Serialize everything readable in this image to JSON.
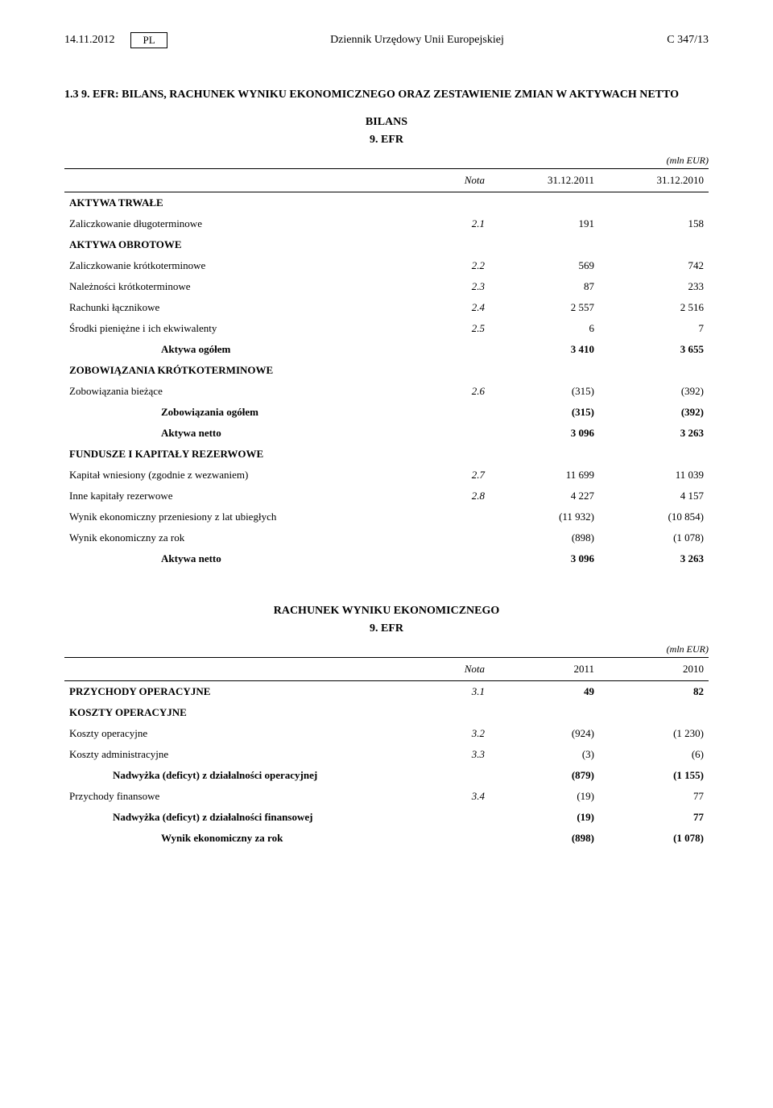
{
  "header": {
    "date": "14.11.2012",
    "language": "PL",
    "journal": "Dziennik Urzędowy Unii Europejskiej",
    "page": "C 347/13"
  },
  "section": {
    "number": "1.3 9.",
    "title": "EFR: BILANS, RACHUNEK WYNIKU EKONOMICZNEGO ORAZ ZESTAWIENIE ZMIAN W AKTYWACH NETTO"
  },
  "balance": {
    "title": "BILANS",
    "subtitle": "9. EFR",
    "unit": "(mln EUR)",
    "columns": {
      "nota": "Nota",
      "c1": "31.12.2011",
      "c2": "31.12.2010"
    },
    "rows": [
      {
        "type": "heading",
        "label": "AKTYWA TRWAŁE"
      },
      {
        "type": "data",
        "label": "Zaliczkowanie długoterminowe",
        "nota": "2.1",
        "v1": "191",
        "v2": "158"
      },
      {
        "type": "heading",
        "label": "AKTYWA OBROTOWE"
      },
      {
        "type": "data",
        "label": "Zaliczkowanie krótkoterminowe",
        "nota": "2.2",
        "v1": "569",
        "v2": "742"
      },
      {
        "type": "data",
        "label": "Należności krótkoterminowe",
        "nota": "2.3",
        "v1": "87",
        "v2": "233"
      },
      {
        "type": "data",
        "label": "Rachunki łącznikowe",
        "nota": "2.4",
        "v1": "2 557",
        "v2": "2 516"
      },
      {
        "type": "data",
        "label": "Środki pieniężne i ich ekwiwalenty",
        "nota": "2.5",
        "v1": "6",
        "v2": "7"
      },
      {
        "type": "indent-bold",
        "label": "Aktywa ogółem",
        "v1": "3 410",
        "v2": "3 655"
      },
      {
        "type": "heading",
        "label": "ZOBOWIĄZANIA KRÓTKOTERMINOWE"
      },
      {
        "type": "data",
        "label": "Zobowiązania bieżące",
        "nota": "2.6",
        "v1": "(315)",
        "v2": "(392)"
      },
      {
        "type": "indent-bold",
        "label": "Zobowiązania ogółem",
        "v1": "(315)",
        "v2": "(392)"
      },
      {
        "type": "indent-bold",
        "label": "Aktywa netto",
        "v1": "3 096",
        "v2": "3 263"
      },
      {
        "type": "heading",
        "label": "FUNDUSZE I KAPITAŁY REZERWOWE"
      },
      {
        "type": "data",
        "label": "Kapitał wniesiony (zgodnie z wezwaniem)",
        "nota": "2.7",
        "v1": "11 699",
        "v2": "11 039"
      },
      {
        "type": "data",
        "label": "Inne kapitały rezerwowe",
        "nota": "2.8",
        "v1": "4 227",
        "v2": "4 157"
      },
      {
        "type": "data",
        "label": "Wynik ekonomiczny przeniesiony z lat ubiegłych",
        "v1": "(11 932)",
        "v2": "(10 854)"
      },
      {
        "type": "data",
        "label": "Wynik ekonomiczny za rok",
        "v1": "(898)",
        "v2": "(1 078)"
      },
      {
        "type": "indent-bold",
        "label": "Aktywa netto",
        "v1": "3 096",
        "v2": "3 263"
      }
    ]
  },
  "income": {
    "title": "RACHUNEK WYNIKU EKONOMICZNEGO",
    "subtitle": "9. EFR",
    "unit": "(mln EUR)",
    "columns": {
      "nota": "Nota",
      "c1": "2011",
      "c2": "2010"
    },
    "rows": [
      {
        "type": "heading-data",
        "label": "PRZYCHODY OPERACYJNE",
        "nota": "3.1",
        "v1": "49",
        "v2": "82"
      },
      {
        "type": "heading",
        "label": "KOSZTY OPERACYJNE"
      },
      {
        "type": "data",
        "label": "Koszty operacyjne",
        "nota": "3.2",
        "v1": "(924)",
        "v2": "(1 230)"
      },
      {
        "type": "data",
        "label": "Koszty administracyjne",
        "nota": "3.3",
        "v1": "(3)",
        "v2": "(6)"
      },
      {
        "type": "indent-mid-bold",
        "label": "Nadwyżka (deficyt) z działalności operacyjnej",
        "v1": "(879)",
        "v2": "(1 155)"
      },
      {
        "type": "data",
        "label": "Przychody finansowe",
        "nota": "3.4",
        "v1": "(19)",
        "v2": "77"
      },
      {
        "type": "indent-mid-bold",
        "label": "Nadwyżka (deficyt) z działalności finansowej",
        "v1": "(19)",
        "v2": "77"
      },
      {
        "type": "indent-bold",
        "label": "Wynik ekonomiczny za rok",
        "v1": "(898)",
        "v2": "(1 078)"
      }
    ]
  }
}
